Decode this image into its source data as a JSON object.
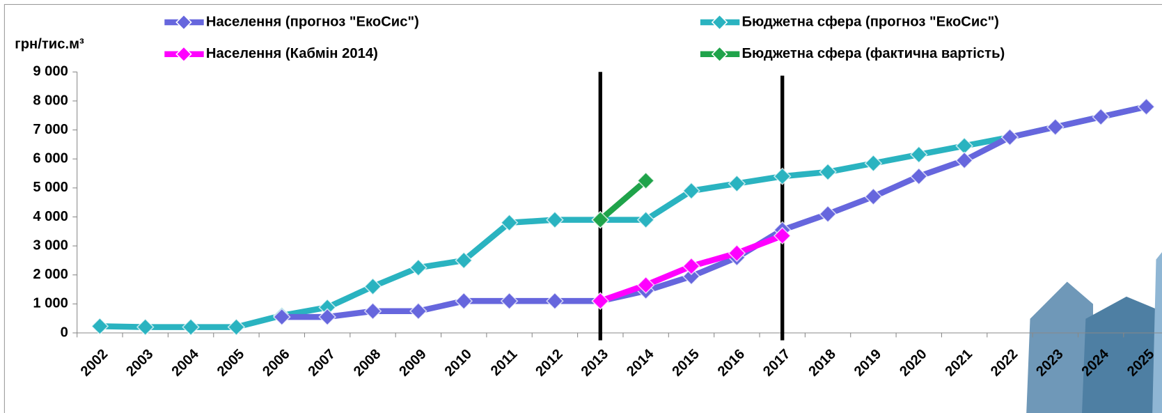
{
  "chart_data": {
    "type": "line",
    "ylabel": "грн/тис.м³",
    "categories": [
      "2002",
      "2003",
      "2004",
      "2005",
      "2006",
      "2007",
      "2008",
      "2009",
      "2010",
      "2011",
      "2012",
      "2013",
      "2014",
      "2015",
      "2016",
      "2017",
      "2018",
      "2019",
      "2020",
      "2021",
      "2022",
      "2023",
      "2024",
      "2025"
    ],
    "ylim": [
      0,
      9000
    ],
    "yticks": [
      0,
      {
        "value": 1000,
        "label": "1 000"
      },
      {
        "value": 2000,
        "label": "2 000"
      },
      {
        "value": 3000,
        "label": "3 000"
      },
      {
        "value": 4000,
        "label": "4 000"
      },
      {
        "value": 5000,
        "label": "5 000"
      },
      {
        "value": 6000,
        "label": "6 000"
      },
      {
        "value": 7000,
        "label": "7 000"
      },
      {
        "value": 8000,
        "label": "8 000"
      },
      {
        "value": 9000,
        "label": "9 000"
      }
    ],
    "series": [
      {
        "name": "Населення (прогноз \"ЕкоСис\")",
        "color": "#6666dd",
        "values": [
          null,
          null,
          null,
          null,
          550,
          550,
          750,
          750,
          1100,
          1100,
          1100,
          1100,
          1450,
          1950,
          2600,
          3550,
          4100,
          4700,
          5400,
          5950,
          6750,
          7100,
          7450,
          7800
        ]
      },
      {
        "name": "Населення (Кабмін 2014)",
        "color": "#ff00ff",
        "values": [
          null,
          null,
          null,
          null,
          null,
          null,
          null,
          null,
          null,
          null,
          null,
          1100,
          1650,
          2300,
          2750,
          3350,
          null,
          null,
          null,
          null,
          null,
          null,
          null,
          null
        ]
      },
      {
        "name": "Бюджетна сфера (прогноз \"ЕкоСис\")",
        "color": "#2ab3c0",
        "values": [
          230,
          200,
          200,
          200,
          600,
          880,
          1600,
          2250,
          2500,
          3800,
          3900,
          3900,
          3900,
          4900,
          5150,
          5400,
          5550,
          5850,
          6150,
          6450,
          6750,
          7100,
          7450,
          7800
        ]
      },
      {
        "name": "Бюджетна сфера (фактична вартість)",
        "color": "#1fa34a",
        "values": [
          null,
          null,
          null,
          null,
          null,
          null,
          null,
          null,
          null,
          null,
          null,
          3900,
          5250,
          null,
          null,
          null,
          null,
          null,
          null,
          null,
          null,
          null,
          null,
          null
        ]
      }
    ]
  }
}
